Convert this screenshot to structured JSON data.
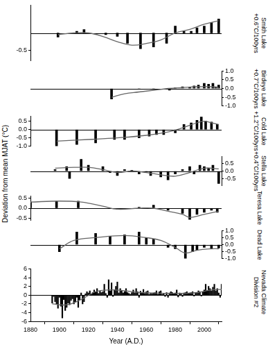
{
  "ylabel": "Deviation from mean MJAT (°C)",
  "chart_data": [
    {
      "type": "bar",
      "title": "Smith Lake",
      "subtitle": "+0.6°C/100yrs",
      "xlim": [
        1880,
        2012
      ],
      "ylim": [
        -0.8,
        0.8
      ],
      "yticks": [
        -0.5
      ],
      "series": [
        {
          "type": "bar",
          "color": "#000000",
          "x": [
            1899,
            1912,
            1917,
            1932,
            1940,
            1947,
            1956,
            1965,
            1974,
            1980,
            1986,
            1991,
            1995,
            2000,
            2005,
            2010
          ],
          "values": [
            -0.12,
            0.05,
            0.1,
            -0.05,
            -0.1,
            -0.3,
            -0.45,
            -0.4,
            -0.3,
            0.2,
            0.05,
            0.05,
            0.15,
            0.2,
            0.3,
            0.4
          ]
        },
        {
          "type": "line",
          "color": "#666666",
          "x": [
            1899,
            1910,
            1920,
            1930,
            1940,
            1950,
            1960,
            1970,
            1980,
            1990,
            2000,
            2010
          ],
          "values": [
            -0.05,
            0.0,
            0.0,
            -0.1,
            -0.25,
            -0.35,
            -0.3,
            -0.2,
            0.0,
            0.1,
            0.25,
            0.35
          ]
        }
      ]
    },
    {
      "type": "bar",
      "title": "Birdeye Lake",
      "subtitle": "+0.7°C/100yrs",
      "xlim": [
        1880,
        2012
      ],
      "ylim": [
        -1.0,
        1.0
      ],
      "yticks": [
        {
          "value": -1.0,
          "label": "-1.0"
        },
        -0.5,
        {
          "value": 0,
          "label": "0.0"
        },
        0.5,
        {
          "value": 1.0,
          "label": "1.0"
        }
      ],
      "series": [
        {
          "type": "bar",
          "color": "#000000",
          "x": [
            1936,
            1955,
            1965,
            1976,
            1980,
            1985,
            1990,
            1993,
            1996,
            2000,
            2003,
            2006,
            2008,
            2010
          ],
          "values": [
            -0.6,
            -0.05,
            -0.05,
            -0.1,
            0.05,
            0.1,
            0.05,
            0.15,
            0.2,
            0.3,
            0.25,
            0.3,
            0.1,
            0.2
          ]
        },
        {
          "type": "line",
          "color": "#666666",
          "x": [
            1936,
            1945,
            1955,
            1965,
            1975,
            1985,
            1995,
            2005,
            2010
          ],
          "values": [
            -0.5,
            -0.3,
            -0.2,
            -0.1,
            0.0,
            0.05,
            0.1,
            0.1,
            0.05
          ]
        }
      ]
    },
    {
      "type": "bar",
      "title": "Cold Lake",
      "subtitle": "+1.2°C/100yrs",
      "xlim": [
        1880,
        2012
      ],
      "ylim": [
        -1.0,
        0.8
      ],
      "yticks": [
        {
          "value": -1.0,
          "label": "-1.0"
        },
        -0.5,
        {
          "value": 0,
          "label": "0.0"
        },
        0.5
      ],
      "series": [
        {
          "type": "bar",
          "color": "#000000",
          "x": [
            1898,
            1912,
            1925,
            1938,
            1945,
            1955,
            1962,
            1967,
            1972,
            1980,
            1986,
            1991,
            1995,
            1998,
            2001,
            2005,
            2009
          ],
          "values": [
            -1.0,
            -0.9,
            -0.8,
            -0.6,
            -0.6,
            -0.5,
            -0.4,
            -0.3,
            -0.3,
            -0.2,
            0.3,
            0.4,
            0.55,
            0.75,
            0.5,
            0.45,
            0.3
          ]
        },
        {
          "type": "line",
          "color": "#666666",
          "x": [
            1898,
            1920,
            1940,
            1960,
            1975,
            1985,
            1995,
            2000,
            2005,
            2010
          ],
          "values": [
            -0.7,
            -0.6,
            -0.5,
            -0.35,
            -0.15,
            0.1,
            0.4,
            0.5,
            0.4,
            0.3
          ]
        }
      ]
    },
    {
      "type": "bar",
      "title": "Stella Lake",
      "subtitle": "+0.4°C/100yrs",
      "xlim": [
        1880,
        2012
      ],
      "ylim": [
        -1.0,
        1.0
      ],
      "yticks": [
        -0.5,
        {
          "value": 0,
          "label": "0.0"
        },
        0.5
      ],
      "series": [
        {
          "type": "bar",
          "color": "#000000",
          "x": [
            1897,
            1905,
            1907,
            1915,
            1920,
            1930,
            1935,
            1940,
            1945,
            1950,
            1955,
            1960,
            1963,
            1970,
            1975,
            1980,
            1985,
            1990,
            1993,
            1997,
            2000,
            2003,
            2006,
            2010
          ],
          "values": [
            0.1,
            0.3,
            -0.5,
            0.8,
            0.4,
            0.3,
            -0.1,
            -0.3,
            0.1,
            0.05,
            -0.2,
            -0.05,
            -0.3,
            -0.4,
            -0.6,
            -0.2,
            0.1,
            0.3,
            -0.2,
            0.4,
            0.3,
            0.2,
            0.4,
            -0.85
          ]
        },
        {
          "type": "line",
          "color": "#666666",
          "x": [
            1897,
            1910,
            1920,
            1930,
            1940,
            1950,
            1960,
            1970,
            1980,
            1990,
            2000,
            2010
          ],
          "values": [
            0.2,
            0.25,
            0.25,
            0.1,
            -0.1,
            0.0,
            -0.1,
            -0.25,
            -0.35,
            -0.1,
            0.2,
            0.15
          ]
        }
      ]
    },
    {
      "type": "bar",
      "title": "Teresa Lake",
      "xlim": [
        1880,
        2012
      ],
      "ylim": [
        -0.6,
        0.6
      ],
      "yticks": [
        -0.5,
        {
          "value": 0,
          "label": "0.0"
        },
        0.5
      ],
      "series": [
        {
          "type": "bar",
          "color": "#000000",
          "x": [
            1880,
            1898,
            1913,
            1940,
            1955,
            1965,
            1975,
            1985,
            1990,
            1995,
            2000,
            2005,
            2009
          ],
          "values": [
            0.3,
            0.35,
            0.35,
            -0.05,
            0.05,
            0.15,
            -0.1,
            -0.25,
            -0.55,
            -0.3,
            -0.2,
            -0.1,
            -0.2
          ]
        },
        {
          "type": "line",
          "color": "#666666",
          "x": [
            1880,
            1900,
            1915,
            1930,
            1940,
            1955,
            1965,
            1975,
            1985,
            1990,
            2000,
            2010
          ],
          "values": [
            0.3,
            0.35,
            0.3,
            0.1,
            -0.05,
            0.0,
            0.0,
            -0.15,
            -0.3,
            -0.45,
            -0.3,
            -0.15
          ]
        }
      ]
    },
    {
      "type": "bar",
      "title": "Dead Lake",
      "xlim": [
        1880,
        2012
      ],
      "ylim": [
        -1.0,
        1.0
      ],
      "yticks": [
        {
          "value": -1.0,
          "label": "-1.0"
        },
        -0.5,
        {
          "value": 0,
          "label": "0.0"
        },
        0.5,
        {
          "value": 1.0,
          "label": "1.0"
        }
      ],
      "series": [
        {
          "type": "bar",
          "color": "#000000",
          "x": [
            1900,
            1912,
            1925,
            1935,
            1945,
            1955,
            1960,
            1965,
            1975,
            1980,
            1987,
            1992,
            1995,
            2000,
            2005,
            2010
          ],
          "values": [
            -0.5,
            0.9,
            0.8,
            0.6,
            0.7,
            0.9,
            0.5,
            0.4,
            -0.2,
            -0.3,
            -1.0,
            -0.5,
            -0.4,
            -0.2,
            -0.3,
            -0.25
          ]
        },
        {
          "type": "line",
          "color": "#666666",
          "x": [
            1900,
            1910,
            1925,
            1945,
            1960,
            1970,
            1980,
            1987,
            1995,
            2005,
            2010
          ],
          "values": [
            -0.3,
            0.3,
            0.5,
            0.65,
            0.5,
            0.3,
            -0.2,
            -0.6,
            -0.4,
            -0.3,
            -0.3
          ]
        }
      ]
    },
    {
      "type": "bar",
      "title": "Nevada Climate Division #2",
      "xlabel": "Year (A.D.)",
      "xlim": [
        1880,
        2012
      ],
      "xticks": [
        1880,
        1900,
        1920,
        1940,
        1960,
        1980,
        2000
      ],
      "ylim": [
        -6,
        6
      ],
      "yticks": [
        -6,
        -4,
        -2,
        0,
        2,
        4,
        6
      ],
      "series": [
        {
          "type": "bar",
          "color": "#000000",
          "x": [
            1895,
            1896,
            1897,
            1898,
            1899,
            1900,
            1901,
            1902,
            1903,
            1904,
            1905,
            1906,
            1907,
            1908,
            1909,
            1910,
            1911,
            1912,
            1913,
            1914,
            1915,
            1916,
            1917,
            1918,
            1919,
            1920,
            1921,
            1922,
            1923,
            1924,
            1925,
            1926,
            1927,
            1928,
            1929,
            1930,
            1931,
            1932,
            1933,
            1934,
            1935,
            1936,
            1937,
            1938,
            1939,
            1940,
            1941,
            1942,
            1943,
            1944,
            1945,
            1946,
            1947,
            1948,
            1949,
            1950,
            1951,
            1952,
            1953,
            1954,
            1955,
            1956,
            1957,
            1958,
            1959,
            1960,
            1961,
            1962,
            1963,
            1964,
            1965,
            1966,
            1967,
            1968,
            1969,
            1970,
            1971,
            1972,
            1973,
            1974,
            1975,
            1976,
            1977,
            1978,
            1979,
            1980,
            1981,
            1982,
            1983,
            1984,
            1985,
            1986,
            1987,
            1988,
            1989,
            1990,
            1991,
            1992,
            1993,
            1994,
            1995,
            1996,
            1997,
            1998,
            1999,
            2000,
            2001,
            2002,
            2003,
            2004,
            2005,
            2006,
            2007,
            2008,
            2009,
            2010,
            2011,
            2012
          ],
          "values": [
            -1.8,
            -0.3,
            -1.5,
            -2.0,
            -3.0,
            -0.5,
            -2.5,
            -5.2,
            -1.0,
            -3.5,
            -2.8,
            -1.8,
            -2.2,
            -1.2,
            -0.8,
            -2.0,
            -1.5,
            -0.5,
            -2.8,
            -1.0,
            0.5,
            -2.0,
            -1.5,
            0.3,
            0.8,
            0.5,
            1.0,
            0.2,
            0.6,
            1.2,
            0.8,
            1.5,
            0.4,
            1.0,
            0.6,
            0.8,
            2.5,
            0.4,
            -0.5,
            3.5,
            1.0,
            2.8,
            -0.3,
            1.2,
            2.0,
            3.0,
            0.5,
            1.5,
            1.0,
            0.5,
            0.8,
            1.5,
            0.6,
            0.4,
            0.2,
            0.6,
            1.2,
            0.5,
            1.5,
            0.8,
            -0.5,
            0.9,
            0.5,
            1.3,
            0.4,
            0.8,
            1.0,
            0.2,
            0.4,
            0.3,
            0.5,
            0.6,
            1.0,
            0.2,
            0.8,
            1.0,
            0.2,
            0.4,
            -0.3,
            0.6,
            -0.5,
            0.5,
            0.8,
            0.6,
            0.3,
            0.5,
            1.2,
            -0.4,
            0.5,
            0.3,
            -0.3,
            0.5,
            0.6,
            0.8,
            0.4,
            0.5,
            0.6,
            0.8,
            -0.2,
            0.6,
            0.5,
            1.0,
            0.8,
            -0.2,
            0.8,
            1.2,
            2.5,
            1.0,
            2.0,
            1.5,
            1.0,
            1.8,
            2.5,
            1.0,
            1.5,
            0.5,
            -0.5,
            2.5
          ]
        },
        {
          "type": "line",
          "color": "#666666",
          "x": [
            1895,
            1905,
            1915,
            1925,
            1935,
            1945,
            1955,
            1965,
            1975,
            1985,
            1995,
            2005,
            2012
          ],
          "values": [
            -2.0,
            -2.2,
            -1.0,
            0.8,
            1.2,
            1.0,
            0.6,
            0.5,
            0.4,
            0.4,
            0.6,
            1.2,
            1.3
          ]
        }
      ]
    }
  ]
}
